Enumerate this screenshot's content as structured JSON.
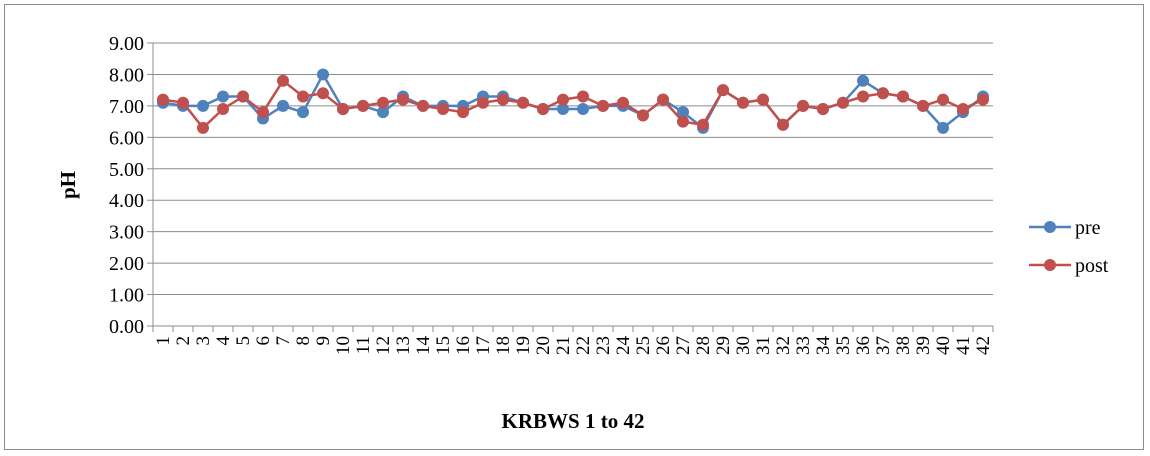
{
  "chart_data": {
    "type": "line",
    "title": "",
    "xlabel": "KRBWS 1 to 42",
    "ylabel": "pH",
    "ylim": [
      0,
      9
    ],
    "yticks": [
      "0.00",
      "1.00",
      "2.00",
      "3.00",
      "4.00",
      "5.00",
      "6.00",
      "7.00",
      "8.00",
      "9.00"
    ],
    "grid": "horizontal",
    "legend_position": "right",
    "categories": [
      "1",
      "2",
      "3",
      "4",
      "5",
      "6",
      "7",
      "8",
      "9",
      "10",
      "11",
      "12",
      "13",
      "14",
      "15",
      "16",
      "17",
      "18",
      "19",
      "20",
      "21",
      "22",
      "23",
      "24",
      "25",
      "26",
      "27",
      "28",
      "29",
      "30",
      "31",
      "32",
      "33",
      "34",
      "35",
      "36",
      "37",
      "38",
      "39",
      "40",
      "41",
      "42"
    ],
    "series": [
      {
        "name": "pre",
        "color": "#4f81bd",
        "values": [
          7.1,
          7.0,
          7.0,
          7.3,
          7.3,
          6.6,
          7.0,
          6.8,
          8.0,
          6.9,
          7.0,
          6.8,
          7.3,
          7.0,
          7.0,
          7.0,
          7.3,
          7.3,
          7.1,
          6.9,
          6.9,
          6.9,
          7.0,
          7.0,
          6.7,
          7.2,
          6.8,
          6.3,
          7.5,
          7.1,
          7.2,
          6.4,
          7.0,
          6.9,
          7.1,
          7.8,
          7.4,
          7.3,
          7.0,
          6.3,
          6.8,
          7.3
        ]
      },
      {
        "name": "post",
        "color": "#c0504d",
        "values": [
          7.2,
          7.1,
          6.3,
          6.9,
          7.3,
          6.8,
          7.8,
          7.3,
          7.4,
          6.9,
          7.0,
          7.1,
          7.2,
          7.0,
          6.9,
          6.8,
          7.1,
          7.2,
          7.1,
          6.9,
          7.2,
          7.3,
          7.0,
          7.1,
          6.7,
          7.2,
          6.5,
          6.4,
          7.5,
          7.1,
          7.2,
          6.4,
          7.0,
          6.9,
          7.1,
          7.3,
          7.4,
          7.3,
          7.0,
          7.2,
          6.9,
          7.2
        ]
      }
    ]
  }
}
